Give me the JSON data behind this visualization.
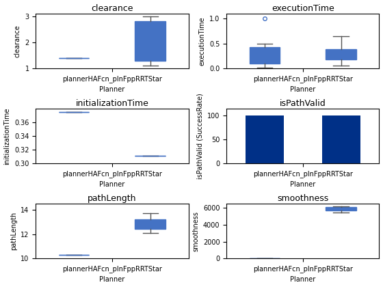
{
  "planners_label": "plannerHAFcn_plnFppRRTStar",
  "xlabel": "Planner",
  "clearance": {
    "title": "clearance",
    "ylabel": "clearance",
    "planner1": {
      "median": 1.4,
      "q1": 1.4,
      "q3": 1.4,
      "whislo": 1.4,
      "whishi": 1.4,
      "fliers": []
    },
    "planner2": {
      "median": 1.4,
      "q1": 1.3,
      "q3": 2.8,
      "whislo": 1.1,
      "whishi": 3.0,
      "fliers": []
    },
    "ylim": [
      1.0,
      3.1
    ],
    "yticks": [
      1,
      2,
      3
    ]
  },
  "executionTime": {
    "title": "executionTime",
    "ylabel": "executionTime",
    "planner1": {
      "median": 0.22,
      "q1": 0.1,
      "q3": 0.42,
      "whislo": 0.02,
      "whishi": 0.5,
      "fliers": [
        1.0
      ]
    },
    "planner2": {
      "median": 0.27,
      "q1": 0.18,
      "q3": 0.38,
      "whislo": 0.06,
      "whishi": 0.65,
      "fliers": []
    },
    "ylim": [
      0.0,
      1.1
    ],
    "yticks": [
      0,
      0.5,
      1
    ]
  },
  "initializationTime": {
    "title": "initializationTime",
    "ylabel": "initializationTime",
    "planner1": {
      "median": 0.375,
      "q1": 0.375,
      "q3": 0.375,
      "whislo": 0.375,
      "whishi": 0.375,
      "fliers": []
    },
    "planner2": {
      "median": 0.311,
      "q1": 0.311,
      "q3": 0.311,
      "whislo": 0.311,
      "whishi": 0.311,
      "fliers": []
    },
    "ylim": [
      0.3,
      0.38
    ],
    "yticks": [
      0.3,
      0.32,
      0.34,
      0.36
    ]
  },
  "isPathValid": {
    "title": "isPathValid",
    "ylabel": "isPathValid (SuccessRate)",
    "values": [
      100,
      100
    ],
    "bar_color": "#003087",
    "ylim": [
      0,
      115
    ],
    "yticks": [
      0,
      50,
      100
    ]
  },
  "pathLength": {
    "title": "pathLength",
    "ylabel": "pathLength",
    "planner1": {
      "median": 10.3,
      "q1": 10.3,
      "q3": 10.3,
      "whislo": 10.3,
      "whishi": 10.3,
      "fliers": []
    },
    "planner2": {
      "median": 12.8,
      "q1": 12.4,
      "q3": 13.2,
      "whislo": 12.1,
      "whishi": 13.7,
      "fliers": []
    },
    "ylim": [
      10,
      14.5
    ],
    "yticks": [
      10,
      12,
      14
    ]
  },
  "smoothness": {
    "title": "smoothness",
    "ylabel": "smoothness",
    "planner1": {
      "median": 50,
      "q1": 50,
      "q3": 50,
      "whislo": 50,
      "whishi": 50,
      "fliers": []
    },
    "planner2": {
      "median": 5900,
      "q1": 5700,
      "q3": 6050,
      "whislo": 5400,
      "whishi": 6200,
      "fliers": []
    },
    "ylim": [
      0,
      6500
    ],
    "yticks": [
      0,
      2000,
      4000,
      6000
    ]
  },
  "box_facecolor": "#ADD8E6",
  "box_edgecolor": "#4472C4",
  "median_color": "#4472C4",
  "whisker_color": "#555555",
  "cap_color": "#555555",
  "flier_edgecolor": "#4472C4",
  "title_fontsize": 9,
  "label_fontsize": 7,
  "tick_fontsize": 7
}
